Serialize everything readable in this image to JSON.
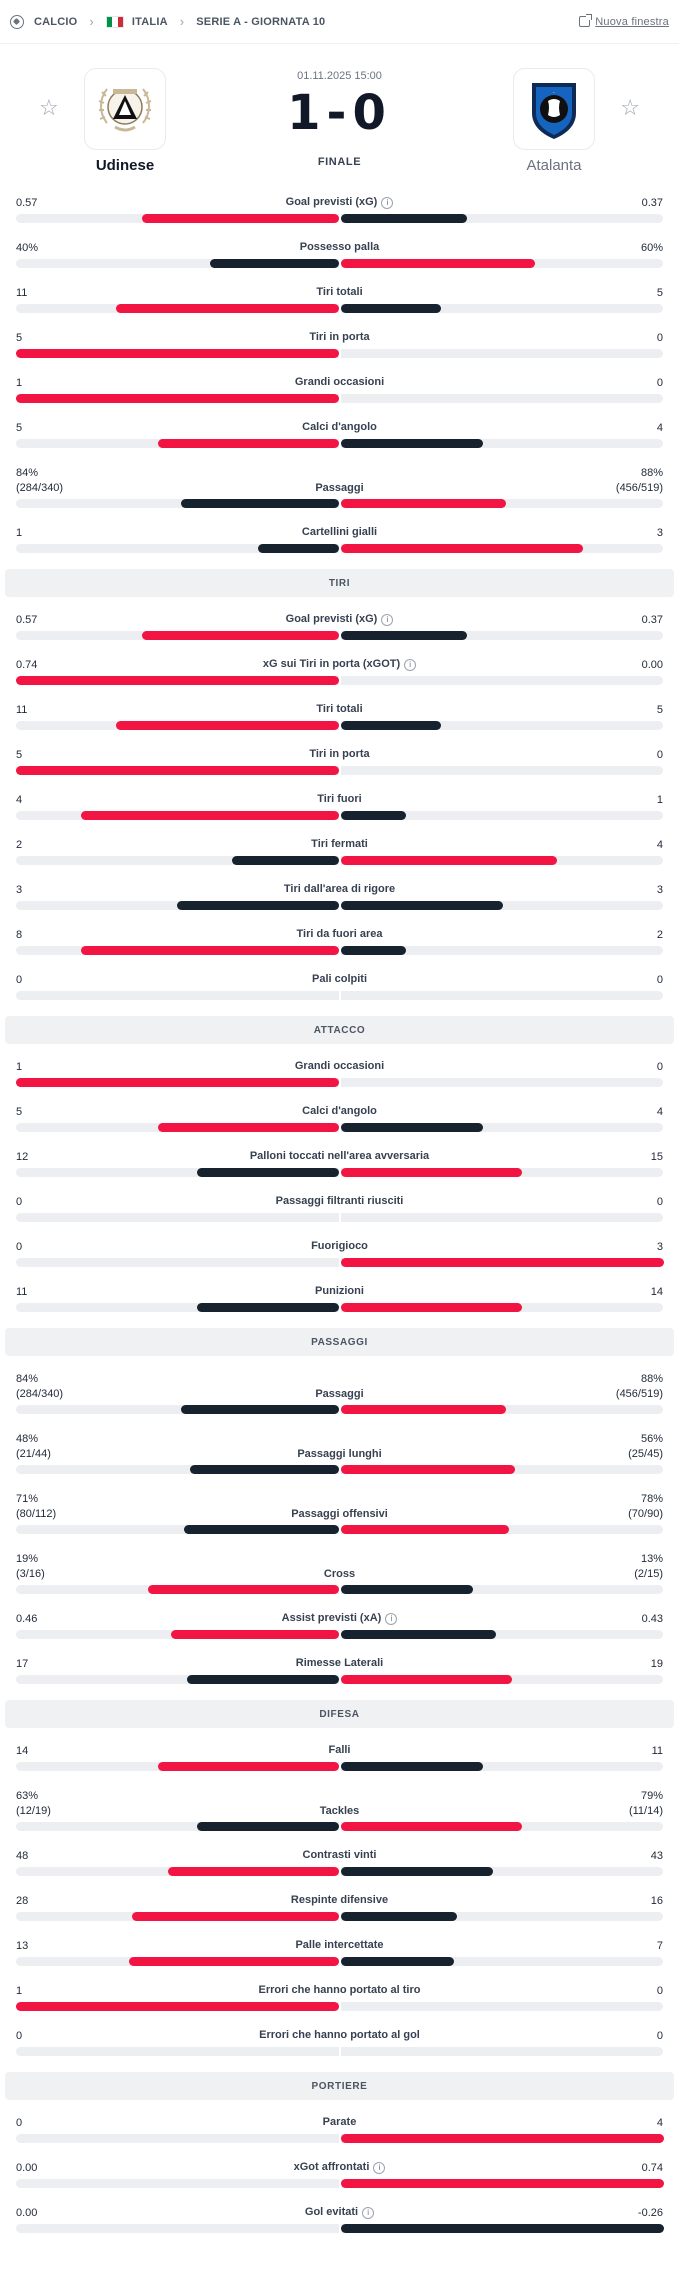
{
  "breadcrumb": {
    "sport": "CALCIO",
    "country": "ITALIA",
    "competition": "SERIE A - GIORNATA 10",
    "new_window": "Nuova finestra"
  },
  "match": {
    "date": "01.11.2025 15:00",
    "score": "1-0",
    "status": "FINALE",
    "home": "Udinese",
    "away": "Atalanta"
  },
  "colors": {
    "home": "#f21543",
    "away": "#16222e",
    "track": "#eceef1"
  },
  "groups": [
    {
      "title": "",
      "stats": [
        {
          "label": "Goal previsti (xG)",
          "info": true,
          "home": "0.57",
          "away": "0.37",
          "home_share": 0.61,
          "away_share": 0.39,
          "leader": "home"
        },
        {
          "label": "Possesso palla",
          "home": "40%",
          "away": "60%",
          "home_share": 0.4,
          "away_share": 0.6,
          "leader": "away"
        },
        {
          "label": "Tiri totali",
          "home": "11",
          "away": "5",
          "home_share": 0.69,
          "away_share": 0.31,
          "leader": "home"
        },
        {
          "label": "Tiri in porta",
          "home": "5",
          "away": "0",
          "home_share": 1.0,
          "away_share": 0.0,
          "leader": "home"
        },
        {
          "label": "Grandi occasioni",
          "home": "1",
          "away": "0",
          "home_share": 1.0,
          "away_share": 0.0,
          "leader": "home"
        },
        {
          "label": "Calci d'angolo",
          "home": "5",
          "away": "4",
          "home_share": 0.56,
          "away_share": 0.44,
          "leader": "home"
        },
        {
          "label": "Passaggi",
          "home": "84%",
          "home_sub": "(284/340)",
          "away": "88%",
          "away_sub": "(456/519)",
          "home_share": 0.49,
          "away_share": 0.51,
          "leader": "away"
        },
        {
          "label": "Cartellini gialli",
          "home": "1",
          "away": "3",
          "home_share": 0.25,
          "away_share": 0.75,
          "leader": "away"
        }
      ]
    },
    {
      "title": "TIRI",
      "stats": [
        {
          "label": "Goal previsti (xG)",
          "info": true,
          "home": "0.57",
          "away": "0.37",
          "home_share": 0.61,
          "away_share": 0.39,
          "leader": "home"
        },
        {
          "label": "xG sui Tiri in porta (xGOT)",
          "info": true,
          "home": "0.74",
          "away": "0.00",
          "home_share": 1.0,
          "away_share": 0.0,
          "leader": "home"
        },
        {
          "label": "Tiri totali",
          "home": "11",
          "away": "5",
          "home_share": 0.69,
          "away_share": 0.31,
          "leader": "home"
        },
        {
          "label": "Tiri in porta",
          "home": "5",
          "away": "0",
          "home_share": 1.0,
          "away_share": 0.0,
          "leader": "home"
        },
        {
          "label": "Tiri fuori",
          "home": "4",
          "away": "1",
          "home_share": 0.8,
          "away_share": 0.2,
          "leader": "home"
        },
        {
          "label": "Tiri fermati",
          "home": "2",
          "away": "4",
          "home_share": 0.33,
          "away_share": 0.67,
          "leader": "away"
        },
        {
          "label": "Tiri dall'area di rigore",
          "home": "3",
          "away": "3",
          "home_share": 0.5,
          "away_share": 0.5,
          "leader": "none"
        },
        {
          "label": "Tiri da fuori area",
          "home": "8",
          "away": "2",
          "home_share": 0.8,
          "away_share": 0.2,
          "leader": "home"
        },
        {
          "label": "Pali colpiti",
          "home": "0",
          "away": "0",
          "home_share": 0.0,
          "away_share": 0.0,
          "leader": "none"
        }
      ]
    },
    {
      "title": "ATTACCO",
      "stats": [
        {
          "label": "Grandi occasioni",
          "home": "1",
          "away": "0",
          "home_share": 1.0,
          "away_share": 0.0,
          "leader": "home"
        },
        {
          "label": "Calci d'angolo",
          "home": "5",
          "away": "4",
          "home_share": 0.56,
          "away_share": 0.44,
          "leader": "home"
        },
        {
          "label": "Palloni toccati nell'area avversaria",
          "home": "12",
          "away": "15",
          "home_share": 0.44,
          "away_share": 0.56,
          "leader": "away"
        },
        {
          "label": "Passaggi filtranti riusciti",
          "home": "0",
          "away": "0",
          "home_share": 0.0,
          "away_share": 0.0,
          "leader": "none"
        },
        {
          "label": "Fuorigioco",
          "home": "0",
          "away": "3",
          "home_share": 0.0,
          "away_share": 1.0,
          "leader": "away"
        },
        {
          "label": "Punizioni",
          "home": "11",
          "away": "14",
          "home_share": 0.44,
          "away_share": 0.56,
          "leader": "away"
        }
      ]
    },
    {
      "title": "PASSAGGI",
      "stats": [
        {
          "label": "Passaggi",
          "home": "84%",
          "home_sub": "(284/340)",
          "away": "88%",
          "away_sub": "(456/519)",
          "home_share": 0.49,
          "away_share": 0.51,
          "leader": "away"
        },
        {
          "label": "Passaggi lunghi",
          "home": "48%",
          "home_sub": "(21/44)",
          "away": "56%",
          "away_sub": "(25/45)",
          "home_share": 0.46,
          "away_share": 0.54,
          "leader": "away"
        },
        {
          "label": "Passaggi offensivi",
          "home": "71%",
          "home_sub": "(80/112)",
          "away": "78%",
          "away_sub": "(70/90)",
          "home_share": 0.48,
          "away_share": 0.52,
          "leader": "away"
        },
        {
          "label": "Cross",
          "home": "19%",
          "home_sub": "(3/16)",
          "away": "13%",
          "away_sub": "(2/15)",
          "home_share": 0.59,
          "away_share": 0.41,
          "leader": "home"
        },
        {
          "label": "Assist previsti (xA)",
          "info": true,
          "home": "0.46",
          "away": "0.43",
          "home_share": 0.52,
          "away_share": 0.48,
          "leader": "home"
        },
        {
          "label": "Rimesse Laterali",
          "home": "17",
          "away": "19",
          "home_share": 0.47,
          "away_share": 0.53,
          "leader": "away"
        }
      ]
    },
    {
      "title": "DIFESA",
      "stats": [
        {
          "label": "Falli",
          "home": "14",
          "away": "11",
          "home_share": 0.56,
          "away_share": 0.44,
          "leader": "home"
        },
        {
          "label": "Tackles",
          "home": "63%",
          "home_sub": "(12/19)",
          "away": "79%",
          "away_sub": "(11/14)",
          "home_share": 0.44,
          "away_share": 0.56,
          "leader": "away"
        },
        {
          "label": "Contrasti vinti",
          "home": "48",
          "away": "43",
          "home_share": 0.53,
          "away_share": 0.47,
          "leader": "home"
        },
        {
          "label": "Respinte difensive",
          "home": "28",
          "away": "16",
          "home_share": 0.64,
          "away_share": 0.36,
          "leader": "home"
        },
        {
          "label": "Palle intercettate",
          "home": "13",
          "away": "7",
          "home_share": 0.65,
          "away_share": 0.35,
          "leader": "home"
        },
        {
          "label": "Errori che hanno portato al tiro",
          "home": "1",
          "away": "0",
          "home_share": 1.0,
          "away_share": 0.0,
          "leader": "home"
        },
        {
          "label": "Errori che hanno portato al gol",
          "home": "0",
          "away": "0",
          "home_share": 0.0,
          "away_share": 0.0,
          "leader": "none"
        }
      ]
    },
    {
      "title": "PORTIERE",
      "stats": [
        {
          "label": "Parate",
          "home": "0",
          "away": "4",
          "home_share": 0.0,
          "away_share": 1.0,
          "leader": "away"
        },
        {
          "label": "xGot affrontati",
          "info": true,
          "home": "0.00",
          "away": "0.74",
          "home_share": 0.0,
          "away_share": 1.0,
          "leader": "away"
        },
        {
          "label": "Gol evitati",
          "info": true,
          "home": "0.00",
          "away": "-0.26",
          "home_share": 0.0,
          "away_share": 1.0,
          "leader": "home"
        }
      ]
    }
  ]
}
